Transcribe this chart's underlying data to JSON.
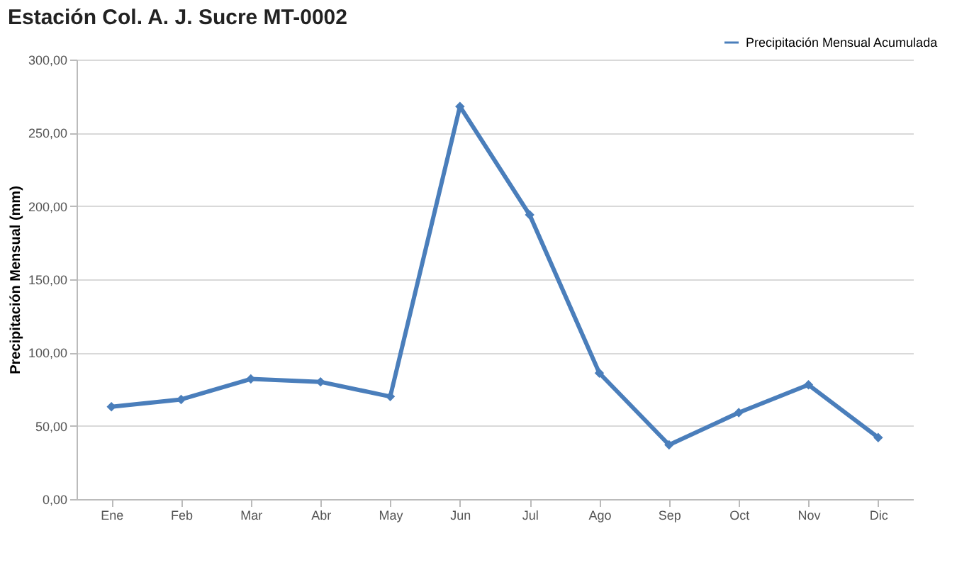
{
  "chart_data": {
    "type": "line",
    "title": "Estación Col. A. J. Sucre MT-0002",
    "ylabel": "Precipitación Mensual (mm)",
    "categories": [
      "Ene",
      "Feb",
      "Mar",
      "Abr",
      "May",
      "Jun",
      "Jul",
      "Ago",
      "Sep",
      "Oct",
      "Nov",
      "Dic"
    ],
    "series": [
      {
        "name": "Precipitación Mensual Acumulada",
        "color": "#4a7ebb",
        "values": [
          63,
          68,
          82,
          80,
          70,
          268,
          194,
          86,
          37,
          59,
          78,
          42
        ]
      }
    ],
    "ylim": [
      0,
      300
    ],
    "yticks": [
      {
        "value": 0,
        "label": "0,00"
      },
      {
        "value": 50,
        "label": "50,00"
      },
      {
        "value": 100,
        "label": "100,00"
      },
      {
        "value": 150,
        "label": "150,00"
      },
      {
        "value": 200,
        "label": "200,00"
      },
      {
        "value": 250,
        "label": "250,00"
      },
      {
        "value": 300,
        "label": "300,00"
      }
    ],
    "grid": "y",
    "legend": "top right",
    "marker": "diamond",
    "line_style": "solid"
  }
}
